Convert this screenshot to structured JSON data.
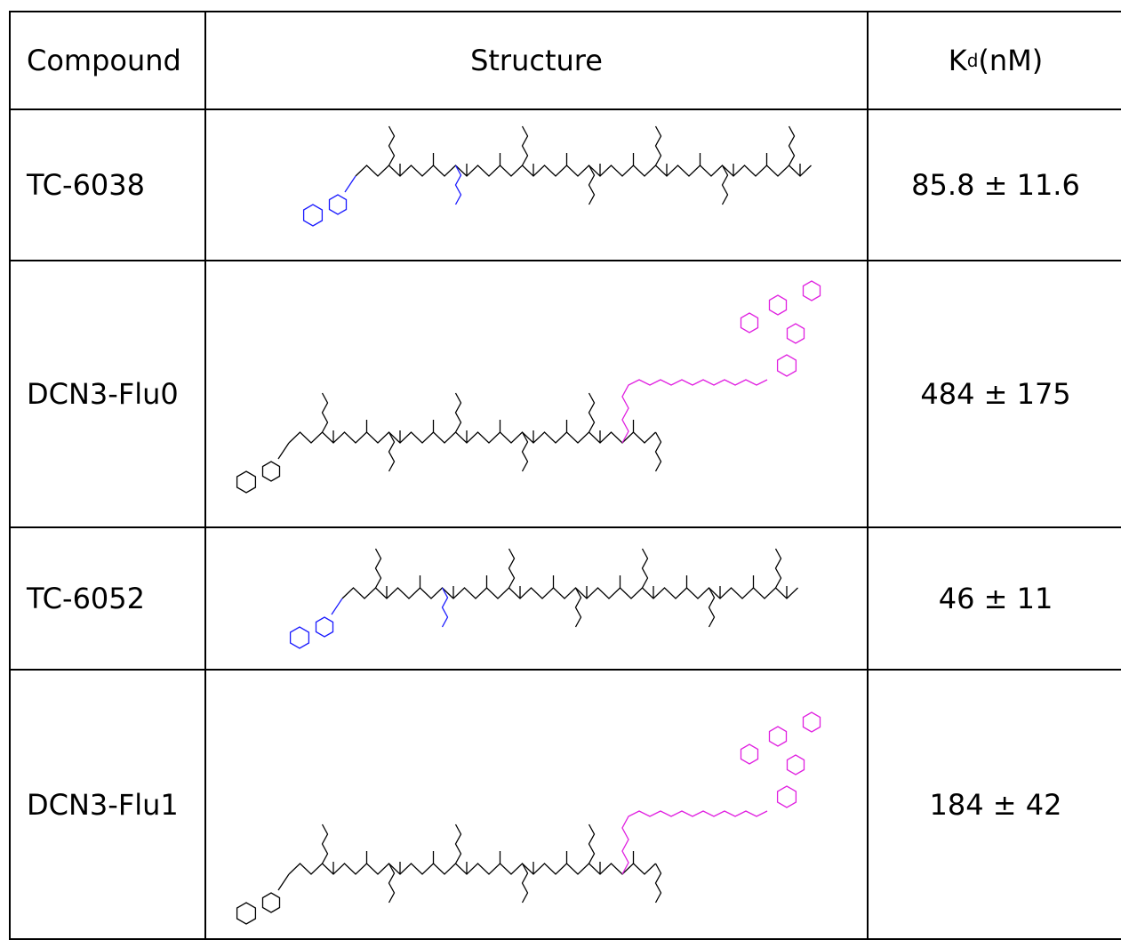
{
  "table": {
    "header": [
      "Compound",
      "Structure",
      {
        "main": "K",
        "sub": "d",
        "rest": " (nM)"
      }
    ],
    "rows": [
      [
        "TC-6038",
        "85.8 ± 11.6"
      ],
      [
        "DCN3-Flu0",
        "484 ± 175"
      ],
      [
        "TC-6052",
        "46 ± 11"
      ],
      [
        "DCN3-Flu1",
        "184 ± 42"
      ]
    ]
  }
}
